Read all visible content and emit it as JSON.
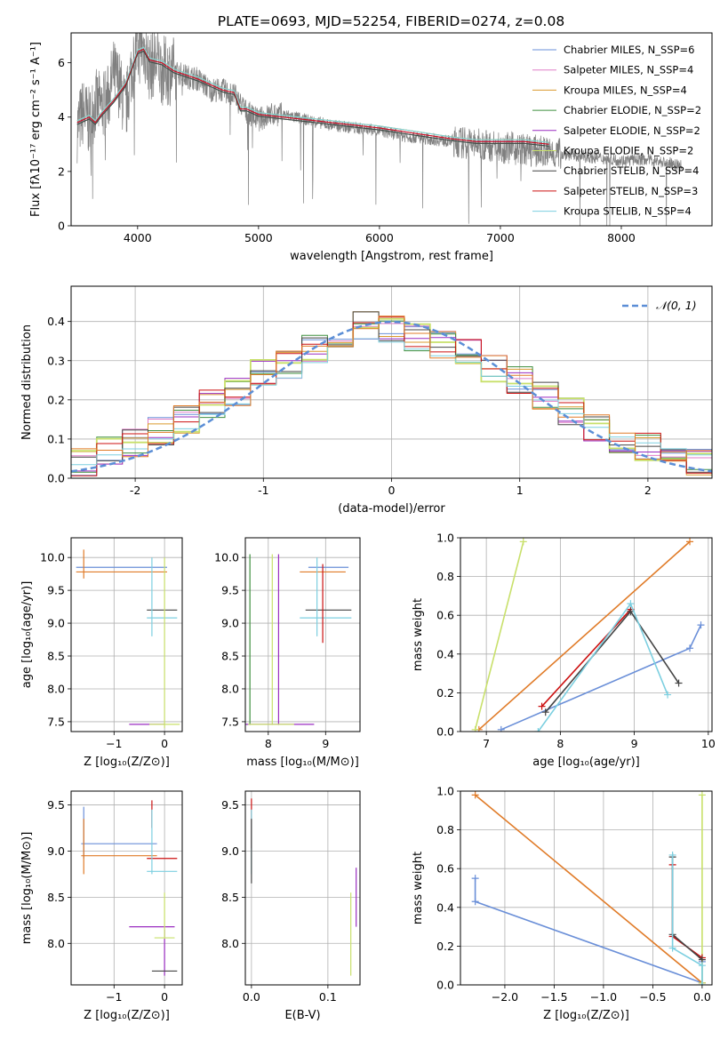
{
  "title": "PLATE=0693, MJD=52254, FIBERID=0274, z=0.08",
  "colors": {
    "chabrier_miles": "#6a8fd8",
    "salpeter_miles": "#e07ec8",
    "kroupa_miles": "#d99a2e",
    "chabrier_elodie": "#3f8f3f",
    "salpeter_elodie": "#9a2cc0",
    "kroupa_elodie": "#c8e06a",
    "chabrier_stelib": "#444444",
    "salpeter_stelib": "#cc1111",
    "kroupa_stelib": "#7ccfe0",
    "orange": "#e07b28",
    "data": "#808080",
    "normal": "#5b8ed6"
  },
  "chart_data": [
    {
      "id": "spectrum",
      "type": "line",
      "xlabel": "wavelength [Angstrom, rest frame]",
      "ylabel": "Flux [fλ10⁻¹⁷ erg cm⁻² s⁻¹ A⁻¹]",
      "xlim": [
        3450,
        8750
      ],
      "ylim": [
        0,
        7.1
      ],
      "xticks": [
        4000,
        5000,
        6000,
        7000,
        8000
      ],
      "yticks": [
        0,
        2,
        4,
        6
      ],
      "data_series": {
        "name": "data",
        "x": [
          3500,
          3550,
          3600,
          3650,
          3700,
          3750,
          3800,
          3850,
          3900,
          3950,
          4000,
          4050,
          4100,
          4150,
          4200,
          4300,
          4400,
          4500,
          4600,
          4700,
          4800,
          4900,
          5000,
          5100,
          5200,
          5400,
          5600,
          5800,
          6000,
          6200,
          6400,
          6600,
          6800,
          7000,
          7200,
          7400,
          7600,
          7800,
          8000,
          8200,
          8400,
          8500
        ],
        "y": [
          3.6,
          4.2,
          3.8,
          4.5,
          4.4,
          4.6,
          5.6,
          5.2,
          4.2,
          5.8,
          6.4,
          6.6,
          5.8,
          6.1,
          5.7,
          5.7,
          5.5,
          5.4,
          5.0,
          5.0,
          4.8,
          4.2,
          3.9,
          4.1,
          4.1,
          3.9,
          3.7,
          3.6,
          3.5,
          3.3,
          3.2,
          3.1,
          3.0,
          2.9,
          2.8,
          2.7,
          2.6,
          2.5,
          2.4,
          2.45,
          2.3,
          2.2
        ]
      },
      "model_series": [
        {
          "name": "Chabrier MILES, N_SSP=6",
          "key": "chabrier_miles"
        },
        {
          "name": "Salpeter MILES, N_SSP=4",
          "key": "salpeter_miles"
        },
        {
          "name": "Kroupa MILES, N_SSP=4",
          "key": "kroupa_miles"
        },
        {
          "name": "Chabrier ELODIE, N_SSP=2",
          "key": "chabrier_elodie"
        },
        {
          "name": "Salpeter ELODIE, N_SSP=2",
          "key": "salpeter_elodie"
        },
        {
          "name": "Kroupa ELODIE, N_SSP=2",
          "key": "kroupa_elodie"
        },
        {
          "name": "Chabrier STELIB, N_SSP=4",
          "key": "chabrier_stelib"
        },
        {
          "name": "Salpeter STELIB, N_SSP=3",
          "key": "salpeter_stelib"
        },
        {
          "name": "Kroupa STELIB, N_SSP=4",
          "key": "kroupa_stelib"
        }
      ],
      "model_x": [
        3500,
        3550,
        3600,
        3650,
        3700,
        3800,
        3900,
        4000,
        4050,
        4100,
        4200,
        4300,
        4500,
        4700,
        4800,
        4850,
        4900,
        5000,
        5200,
        5400,
        5600,
        5800,
        6000,
        6300,
        6600,
        6800,
        7000,
        7200,
        7400
      ],
      "model_y": [
        3.8,
        3.9,
        4.0,
        3.8,
        4.1,
        4.6,
        5.2,
        6.4,
        6.5,
        6.1,
        6.0,
        5.7,
        5.4,
        5.0,
        4.9,
        4.3,
        4.3,
        4.1,
        4.0,
        3.9,
        3.8,
        3.7,
        3.6,
        3.4,
        3.2,
        3.1,
        3.1,
        3.1,
        3.0
      ]
    },
    {
      "id": "residuals",
      "type": "line",
      "xlabel": "(data-model)/error",
      "ylabel": "Normed distribution",
      "xlim": [
        -2.5,
        2.5
      ],
      "ylim": [
        0,
        0.49
      ],
      "xticks": [
        -2,
        -1,
        0,
        1,
        2
      ],
      "yticks": [
        0.0,
        0.1,
        0.2,
        0.3,
        0.4
      ],
      "legend": "𝒩(0, 1)",
      "steps_x": [
        -2.5,
        -2.3,
        -2.1,
        -1.9,
        -1.7,
        -1.5,
        -1.3,
        -1.1,
        -0.9,
        -0.7,
        -0.5,
        -0.3,
        -0.1,
        0.1,
        0.3,
        0.5,
        0.7,
        0.9,
        1.1,
        1.3,
        1.5,
        1.7,
        1.9,
        2.1,
        2.3,
        2.5
      ],
      "steps_y": [
        0.04,
        0.07,
        0.09,
        0.12,
        0.15,
        0.19,
        0.22,
        0.27,
        0.29,
        0.33,
        0.37,
        0.39,
        0.38,
        0.36,
        0.34,
        0.32,
        0.28,
        0.25,
        0.21,
        0.17,
        0.13,
        0.1,
        0.08,
        0.06,
        0.04
      ]
    },
    {
      "id": "age_vs_z",
      "type": "scatter",
      "xlabel": "Z [log₁₀(Z/Z⊙)]",
      "ylabel": "age  [log₁₀(age/yr)]",
      "xlim": [
        -1.85,
        0.35
      ],
      "ylim": [
        7.35,
        10.3
      ],
      "xticks": [
        -1,
        0
      ],
      "yticks": [
        7.5,
        8.0,
        8.5,
        9.0,
        9.5,
        10.0
      ],
      "points": [
        {
          "key": "chabrier_miles",
          "x": -0.85,
          "y": 9.85,
          "xerr": 0.9,
          "yerr": 0.0
        },
        {
          "key": "orange",
          "x": -0.85,
          "y": 9.78,
          "xerr": 0.9,
          "yerr": 0.0
        },
        {
          "key": "orange",
          "x": -1.6,
          "y": 9.9,
          "xerr": 0.0,
          "yerr": 0.22
        },
        {
          "key": "chabrier_stelib",
          "x": -0.05,
          "y": 9.2,
          "xerr": 0.3,
          "yerr": 0.0
        },
        {
          "key": "kroupa_stelib",
          "x": -0.05,
          "y": 9.08,
          "xerr": 0.3,
          "yerr": 0.0
        },
        {
          "key": "kroupa_stelib",
          "x": -0.25,
          "y": 9.4,
          "xerr": 0.0,
          "yerr": 0.6
        },
        {
          "key": "kroupa_elodie",
          "x": 0.0,
          "y": 8.7,
          "xerr": 0.0,
          "yerr": 1.3
        },
        {
          "key": "salpeter_elodie",
          "x": -0.35,
          "y": 7.46,
          "xerr": 0.35,
          "yerr": 0.0
        },
        {
          "key": "kroupa_elodie",
          "x": 0.0,
          "y": 7.46,
          "xerr": 0.3,
          "yerr": 0.0
        }
      ]
    },
    {
      "id": "age_vs_mass",
      "type": "scatter",
      "xlabel": "mass [log₁₀(M/M⊙)]",
      "ylabel": "",
      "xlim": [
        7.6,
        9.6
      ],
      "ylim": [
        7.35,
        10.3
      ],
      "xticks": [
        8,
        9
      ],
      "yticks": [
        7.5,
        8.0,
        8.5,
        9.0,
        9.5,
        10.0
      ],
      "points": [
        {
          "key": "chabrier_miles",
          "x": 9.05,
          "y": 9.85,
          "xerr": 0.35,
          "yerr": 0.0
        },
        {
          "key": "orange",
          "x": 8.95,
          "y": 9.78,
          "xerr": 0.4,
          "yerr": 0.0
        },
        {
          "key": "chabrier_stelib",
          "x": 9.05,
          "y": 9.2,
          "xerr": 0.4,
          "yerr": 0.0
        },
        {
          "key": "kroupa_stelib",
          "x": 9.0,
          "y": 9.08,
          "xerr": 0.45,
          "yerr": 0.0
        },
        {
          "key": "kroupa_stelib",
          "x": 8.85,
          "y": 9.4,
          "xerr": 0.0,
          "yerr": 0.6
        },
        {
          "key": "salpeter_stelib",
          "x": 8.95,
          "y": 9.3,
          "xerr": 0.0,
          "yerr": 0.6
        },
        {
          "key": "chabrier_elodie",
          "x": 7.68,
          "y": 8.75,
          "xerr": 0.0,
          "yerr": 1.3
        },
        {
          "key": "kroupa_elodie",
          "x": 8.07,
          "y": 8.75,
          "xerr": 0.0,
          "yerr": 1.3
        },
        {
          "key": "salpeter_elodie",
          "x": 8.18,
          "y": 8.75,
          "xerr": 0.0,
          "yerr": 1.3
        },
        {
          "key": "salpeter_elodie",
          "x": 8.2,
          "y": 7.46,
          "xerr": 0.6,
          "yerr": 0.0
        },
        {
          "key": "kroupa_elodie",
          "x": 8.05,
          "y": 7.46,
          "xerr": 0.4,
          "yerr": 0.0
        }
      ]
    },
    {
      "id": "weight_vs_age",
      "type": "line",
      "xlabel": "age  [log₁₀(age/yr)]",
      "ylabel": "mass weight",
      "xlim": [
        6.65,
        10.05
      ],
      "ylim": [
        0,
        1
      ],
      "xticks": [
        7,
        8,
        9,
        10
      ],
      "yticks": [
        0.0,
        0.2,
        0.4,
        0.6,
        0.8,
        1.0
      ],
      "series": [
        {
          "key": "chabrier_miles",
          "x": [
            7.2,
            9.75,
            9.9
          ],
          "y": [
            0.01,
            0.43,
            0.55
          ]
        },
        {
          "key": "orange",
          "x": [
            6.9,
            9.75
          ],
          "y": [
            0.01,
            0.98
          ]
        },
        {
          "key": "kroupa_elodie",
          "x": [
            6.85,
            7.5
          ],
          "y": [
            0.01,
            0.98
          ]
        },
        {
          "key": "salpeter_stelib",
          "x": [
            7.75,
            8.95
          ],
          "y": [
            0.13,
            0.63
          ]
        },
        {
          "key": "chabrier_stelib",
          "x": [
            7.8,
            8.95,
            9.6
          ],
          "y": [
            0.1,
            0.62,
            0.25
          ]
        },
        {
          "key": "kroupa_stelib",
          "x": [
            7.7,
            8.95,
            9.45
          ],
          "y": [
            0.0,
            0.66,
            0.19
          ]
        }
      ]
    },
    {
      "id": "mass_vs_z",
      "type": "scatter",
      "xlabel": "Z [log₁₀(Z/Z⊙)]",
      "ylabel": "mass [log₁₀(M/M⊙)]",
      "xlim": [
        -1.85,
        0.35
      ],
      "ylim": [
        7.55,
        9.65
      ],
      "xticks": [
        -1,
        0
      ],
      "yticks": [
        8.0,
        8.5,
        9.0,
        9.5
      ],
      "points": [
        {
          "key": "chabrier_miles",
          "x": -0.9,
          "y": 9.08,
          "xerr": 0.75,
          "yerr": 0.0
        },
        {
          "key": "chabrier_miles",
          "x": -1.6,
          "y": 9.2,
          "xerr": 0.0,
          "yerr": 0.28
        },
        {
          "key": "orange",
          "x": -0.9,
          "y": 8.95,
          "xerr": 0.75,
          "yerr": 0.0
        },
        {
          "key": "orange",
          "x": -1.6,
          "y": 9.05,
          "xerr": 0.0,
          "yerr": 0.3
        },
        {
          "key": "salpeter_stelib",
          "x": -0.05,
          "y": 8.92,
          "xerr": 0.3,
          "yerr": 0.0
        },
        {
          "key": "salpeter_stelib",
          "x": -0.25,
          "y": 9.4,
          "xerr": 0.0,
          "yerr": 0.15
        },
        {
          "key": "kroupa_stelib",
          "x": -0.05,
          "y": 8.78,
          "xerr": 0.3,
          "yerr": 0.0
        },
        {
          "key": "kroupa_stelib",
          "x": -0.25,
          "y": 9.1,
          "xerr": 0.0,
          "yerr": 0.35
        },
        {
          "key": "salpeter_elodie",
          "x": -0.25,
          "y": 8.18,
          "xerr": 0.45,
          "yerr": 0.0
        },
        {
          "key": "salpeter_elodie",
          "x": 0.0,
          "y": 7.9,
          "xerr": 0.0,
          "yerr": 0.25
        },
        {
          "key": "kroupa_elodie",
          "x": 0.0,
          "y": 8.06,
          "xerr": 0.2,
          "yerr": 0.0
        },
        {
          "key": "kroupa_elodie",
          "x": 0.0,
          "y": 8.3,
          "xerr": 0.0,
          "yerr": 0.25
        },
        {
          "key": "chabrier_stelib",
          "x": 0.0,
          "y": 7.7,
          "xerr": 0.25,
          "yerr": 0.0
        }
      ]
    },
    {
      "id": "mass_vs_ebv",
      "type": "scatter",
      "xlabel": "E(B-V)",
      "ylabel": "",
      "xlim": [
        -0.008,
        0.142
      ],
      "ylim": [
        7.55,
        9.65
      ],
      "xticks": [
        0.0,
        0.1
      ],
      "yticks": [
        8.0,
        8.5,
        9.0,
        9.5
      ],
      "points": [
        {
          "key": "salpeter_stelib",
          "x": 0.0,
          "y": 9.3,
          "xerr": 0.0,
          "yerr": 0.27
        },
        {
          "key": "kroupa_stelib",
          "x": 0.0,
          "y": 9.1,
          "xerr": 0.0,
          "yerr": 0.35
        },
        {
          "key": "chabrier_stelib",
          "x": 0.0,
          "y": 9.0,
          "xerr": 0.0,
          "yerr": 0.35
        },
        {
          "key": "salpeter_elodie",
          "x": 0.137,
          "y": 8.5,
          "xerr": 0.0,
          "yerr": 0.32
        },
        {
          "key": "kroupa_elodie",
          "x": 0.13,
          "y": 8.1,
          "xerr": 0.0,
          "yerr": 0.45
        }
      ]
    },
    {
      "id": "weight_vs_z",
      "type": "line",
      "xlabel": "Z [log₁₀(Z/Z⊙)]",
      "ylabel": "mass weight",
      "xlim": [
        -2.45,
        0.1
      ],
      "ylim": [
        0,
        1
      ],
      "xticks": [
        -2.0,
        -1.5,
        -1.0,
        -0.5,
        0.0
      ],
      "yticks": [
        0.0,
        0.2,
        0.4,
        0.6,
        0.8,
        1.0
      ],
      "series": [
        {
          "key": "chabrier_miles",
          "x": [
            -2.3,
            -2.3,
            0.0,
            0.0
          ],
          "y": [
            0.55,
            0.43,
            0.01,
            0.12
          ]
        },
        {
          "key": "orange",
          "x": [
            -2.3,
            0.0
          ],
          "y": [
            0.98,
            0.01
          ]
        },
        {
          "key": "kroupa_elodie",
          "x": [
            0.0,
            0.0
          ],
          "y": [
            0.01,
            0.98
          ]
        },
        {
          "key": "salpeter_stelib",
          "x": [
            -0.3,
            -0.3,
            0.0
          ],
          "y": [
            0.62,
            0.25,
            0.14
          ]
        },
        {
          "key": "chabrier_stelib",
          "x": [
            -0.3,
            -0.3,
            0.0
          ],
          "y": [
            0.66,
            0.26,
            0.13
          ]
        },
        {
          "key": "kroupa_stelib",
          "x": [
            -0.3,
            -0.3,
            0.0,
            0.0
          ],
          "y": [
            0.67,
            0.19,
            0.1,
            0.0
          ]
        }
      ]
    }
  ]
}
